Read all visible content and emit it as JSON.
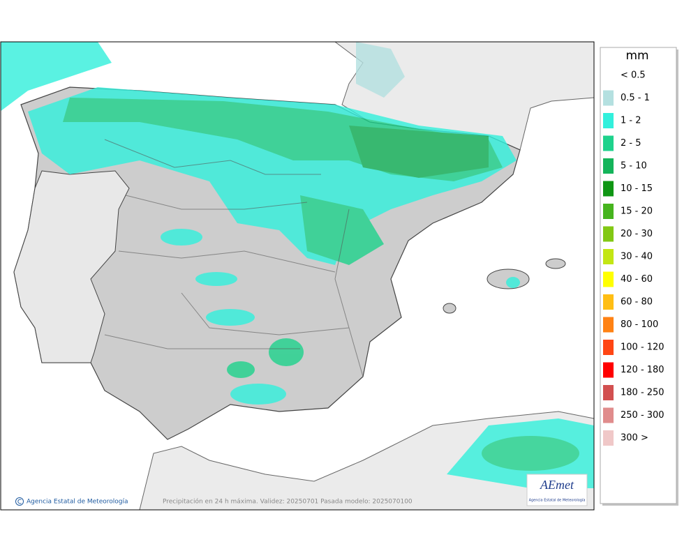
{
  "legend": {
    "title": "mm",
    "items": [
      {
        "label": "< 0.5",
        "color": "#ffffff"
      },
      {
        "label": "0.5 - 1",
        "color": "#b4e0e0"
      },
      {
        "label": "1 - 2",
        "color": "#32f0dc"
      },
      {
        "label": "2 - 5",
        "color": "#1ed28c"
      },
      {
        "label": "5 - 10",
        "color": "#14b45a"
      },
      {
        "label": "10 - 15",
        "color": "#0f9614"
      },
      {
        "label": "15 - 20",
        "color": "#46b41e"
      },
      {
        "label": "20 - 30",
        "color": "#82c814"
      },
      {
        "label": "30 - 40",
        "color": "#c3e614"
      },
      {
        "label": "40 - 60",
        "color": "#ffff00"
      },
      {
        "label": "60 - 80",
        "color": "#ffbe14"
      },
      {
        "label": "80 - 100",
        "color": "#ff8214"
      },
      {
        "label": "100 - 120",
        "color": "#ff4614"
      },
      {
        "label": "120 - 180",
        "color": "#ff0000"
      },
      {
        "label": "180 - 250",
        "color": "#d25050"
      },
      {
        "label": "250 - 300",
        "color": "#e08c8c"
      },
      {
        "label": "300 >",
        "color": "#f0c8c8"
      }
    ]
  },
  "footer": {
    "credit": "Agencia Estatal de Meteorología",
    "caption": "Precipitación en 24 h máxima. Validez: 20250701 Pasada modelo: 2025070100"
  },
  "logo": {
    "name": "AEmet",
    "subtitle": "Agencia Estatal de Meteorología"
  }
}
